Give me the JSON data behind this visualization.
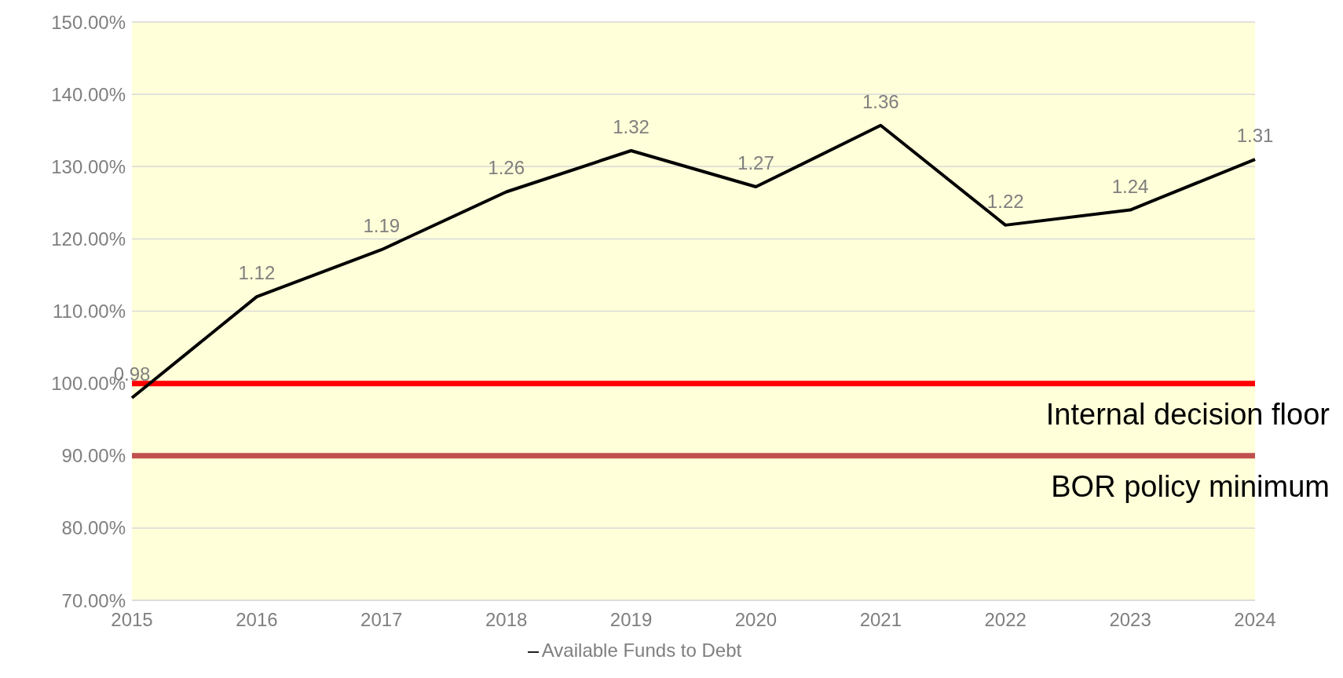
{
  "chart_data": {
    "type": "line",
    "categories": [
      "2015",
      "2016",
      "2017",
      "2018",
      "2019",
      "2020",
      "2021",
      "2022",
      "2023",
      "2024"
    ],
    "series": [
      {
        "name": "Available Funds to Debt",
        "color": "#000000",
        "values": [
          0.98,
          1.12,
          1.185,
          1.265,
          1.322,
          1.272,
          1.357,
          1.219,
          1.24,
          1.31
        ],
        "value_labels": [
          "0.98",
          "1.12",
          "1.19",
          "1.26",
          "1.32",
          "1.27",
          "1.36",
          "1.22",
          "1.24",
          "1.31"
        ]
      }
    ],
    "ylim": [
      0.7,
      1.5
    ],
    "yticks": [
      {
        "value": 0.7,
        "label": "70.00%"
      },
      {
        "value": 0.8,
        "label": "80.00%"
      },
      {
        "value": 0.9,
        "label": "90.00%"
      },
      {
        "value": 1.0,
        "label": "100.00%"
      },
      {
        "value": 1.1,
        "label": "110.00%"
      },
      {
        "value": 1.2,
        "label": "120.00%"
      },
      {
        "value": 1.3,
        "label": "130.00%"
      },
      {
        "value": 1.4,
        "label": "140.00%"
      },
      {
        "value": 1.5,
        "label": "150.00%"
      }
    ],
    "ref_lines": [
      {
        "axis": "y",
        "value": 1.0,
        "label": "Internal decision floor",
        "color": "#ff0000"
      },
      {
        "axis": "y",
        "value": 0.9,
        "label": "BOR policy minimum",
        "color": "#c0504d"
      }
    ],
    "grid": "y",
    "legend": "bottom",
    "marker": "none",
    "line_style": "solid"
  }
}
